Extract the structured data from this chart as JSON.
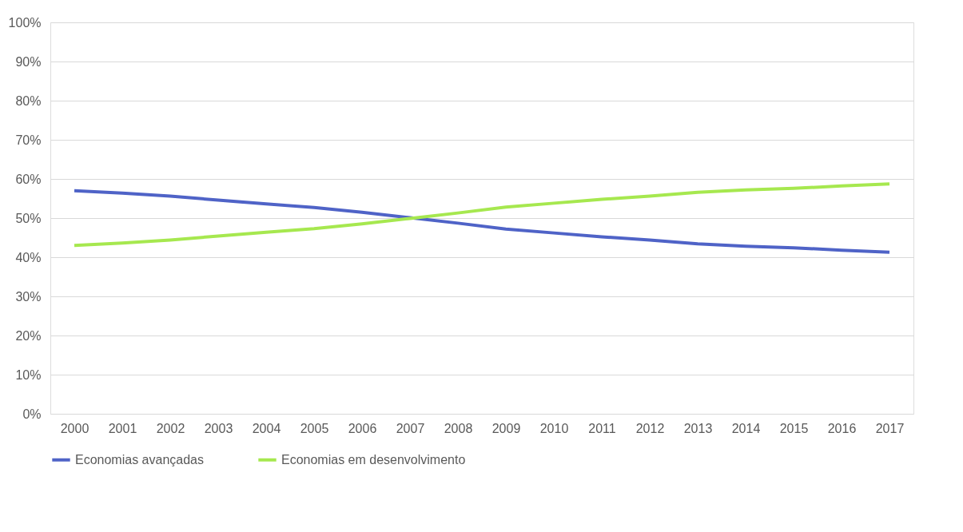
{
  "chart_data": {
    "type": "line",
    "categories": [
      "2000",
      "2001",
      "2002",
      "2003",
      "2004",
      "2005",
      "2006",
      "2007",
      "2008",
      "2009",
      "2010",
      "2011",
      "2012",
      "2013",
      "2014",
      "2015",
      "2016",
      "2017"
    ],
    "series": [
      {
        "name": "Economias avançadas",
        "color": "#4f63c7",
        "values": [
          57.0,
          56.4,
          55.6,
          54.6,
          53.6,
          52.7,
          51.5,
          50.1,
          48.7,
          47.2,
          46.2,
          45.2,
          44.4,
          43.4,
          42.8,
          42.4,
          41.8,
          41.3
        ]
      },
      {
        "name": "Economias em desenvolvimento",
        "color": "#a6e84f",
        "values": [
          43.0,
          43.6,
          44.4,
          45.4,
          46.4,
          47.3,
          48.5,
          49.9,
          51.3,
          52.8,
          53.8,
          54.8,
          55.6,
          56.6,
          57.2,
          57.6,
          58.2,
          58.7
        ]
      }
    ],
    "ylim": [
      0,
      100
    ],
    "yticks": [
      {
        "value": 0,
        "label": "0%"
      },
      {
        "value": 10,
        "label": "10%"
      },
      {
        "value": 20,
        "label": "20%"
      },
      {
        "value": 30,
        "label": "30%"
      },
      {
        "value": 40,
        "label": "40%"
      },
      {
        "value": 50,
        "label": "50%"
      },
      {
        "value": 60,
        "label": "60%"
      },
      {
        "value": 70,
        "label": "70%"
      },
      {
        "value": 80,
        "label": "80%"
      },
      {
        "value": 90,
        "label": "90%"
      },
      {
        "value": 100,
        "label": "100%"
      }
    ],
    "grid": "y",
    "legend": "bottom",
    "marker": "none",
    "line_style": "solid"
  }
}
